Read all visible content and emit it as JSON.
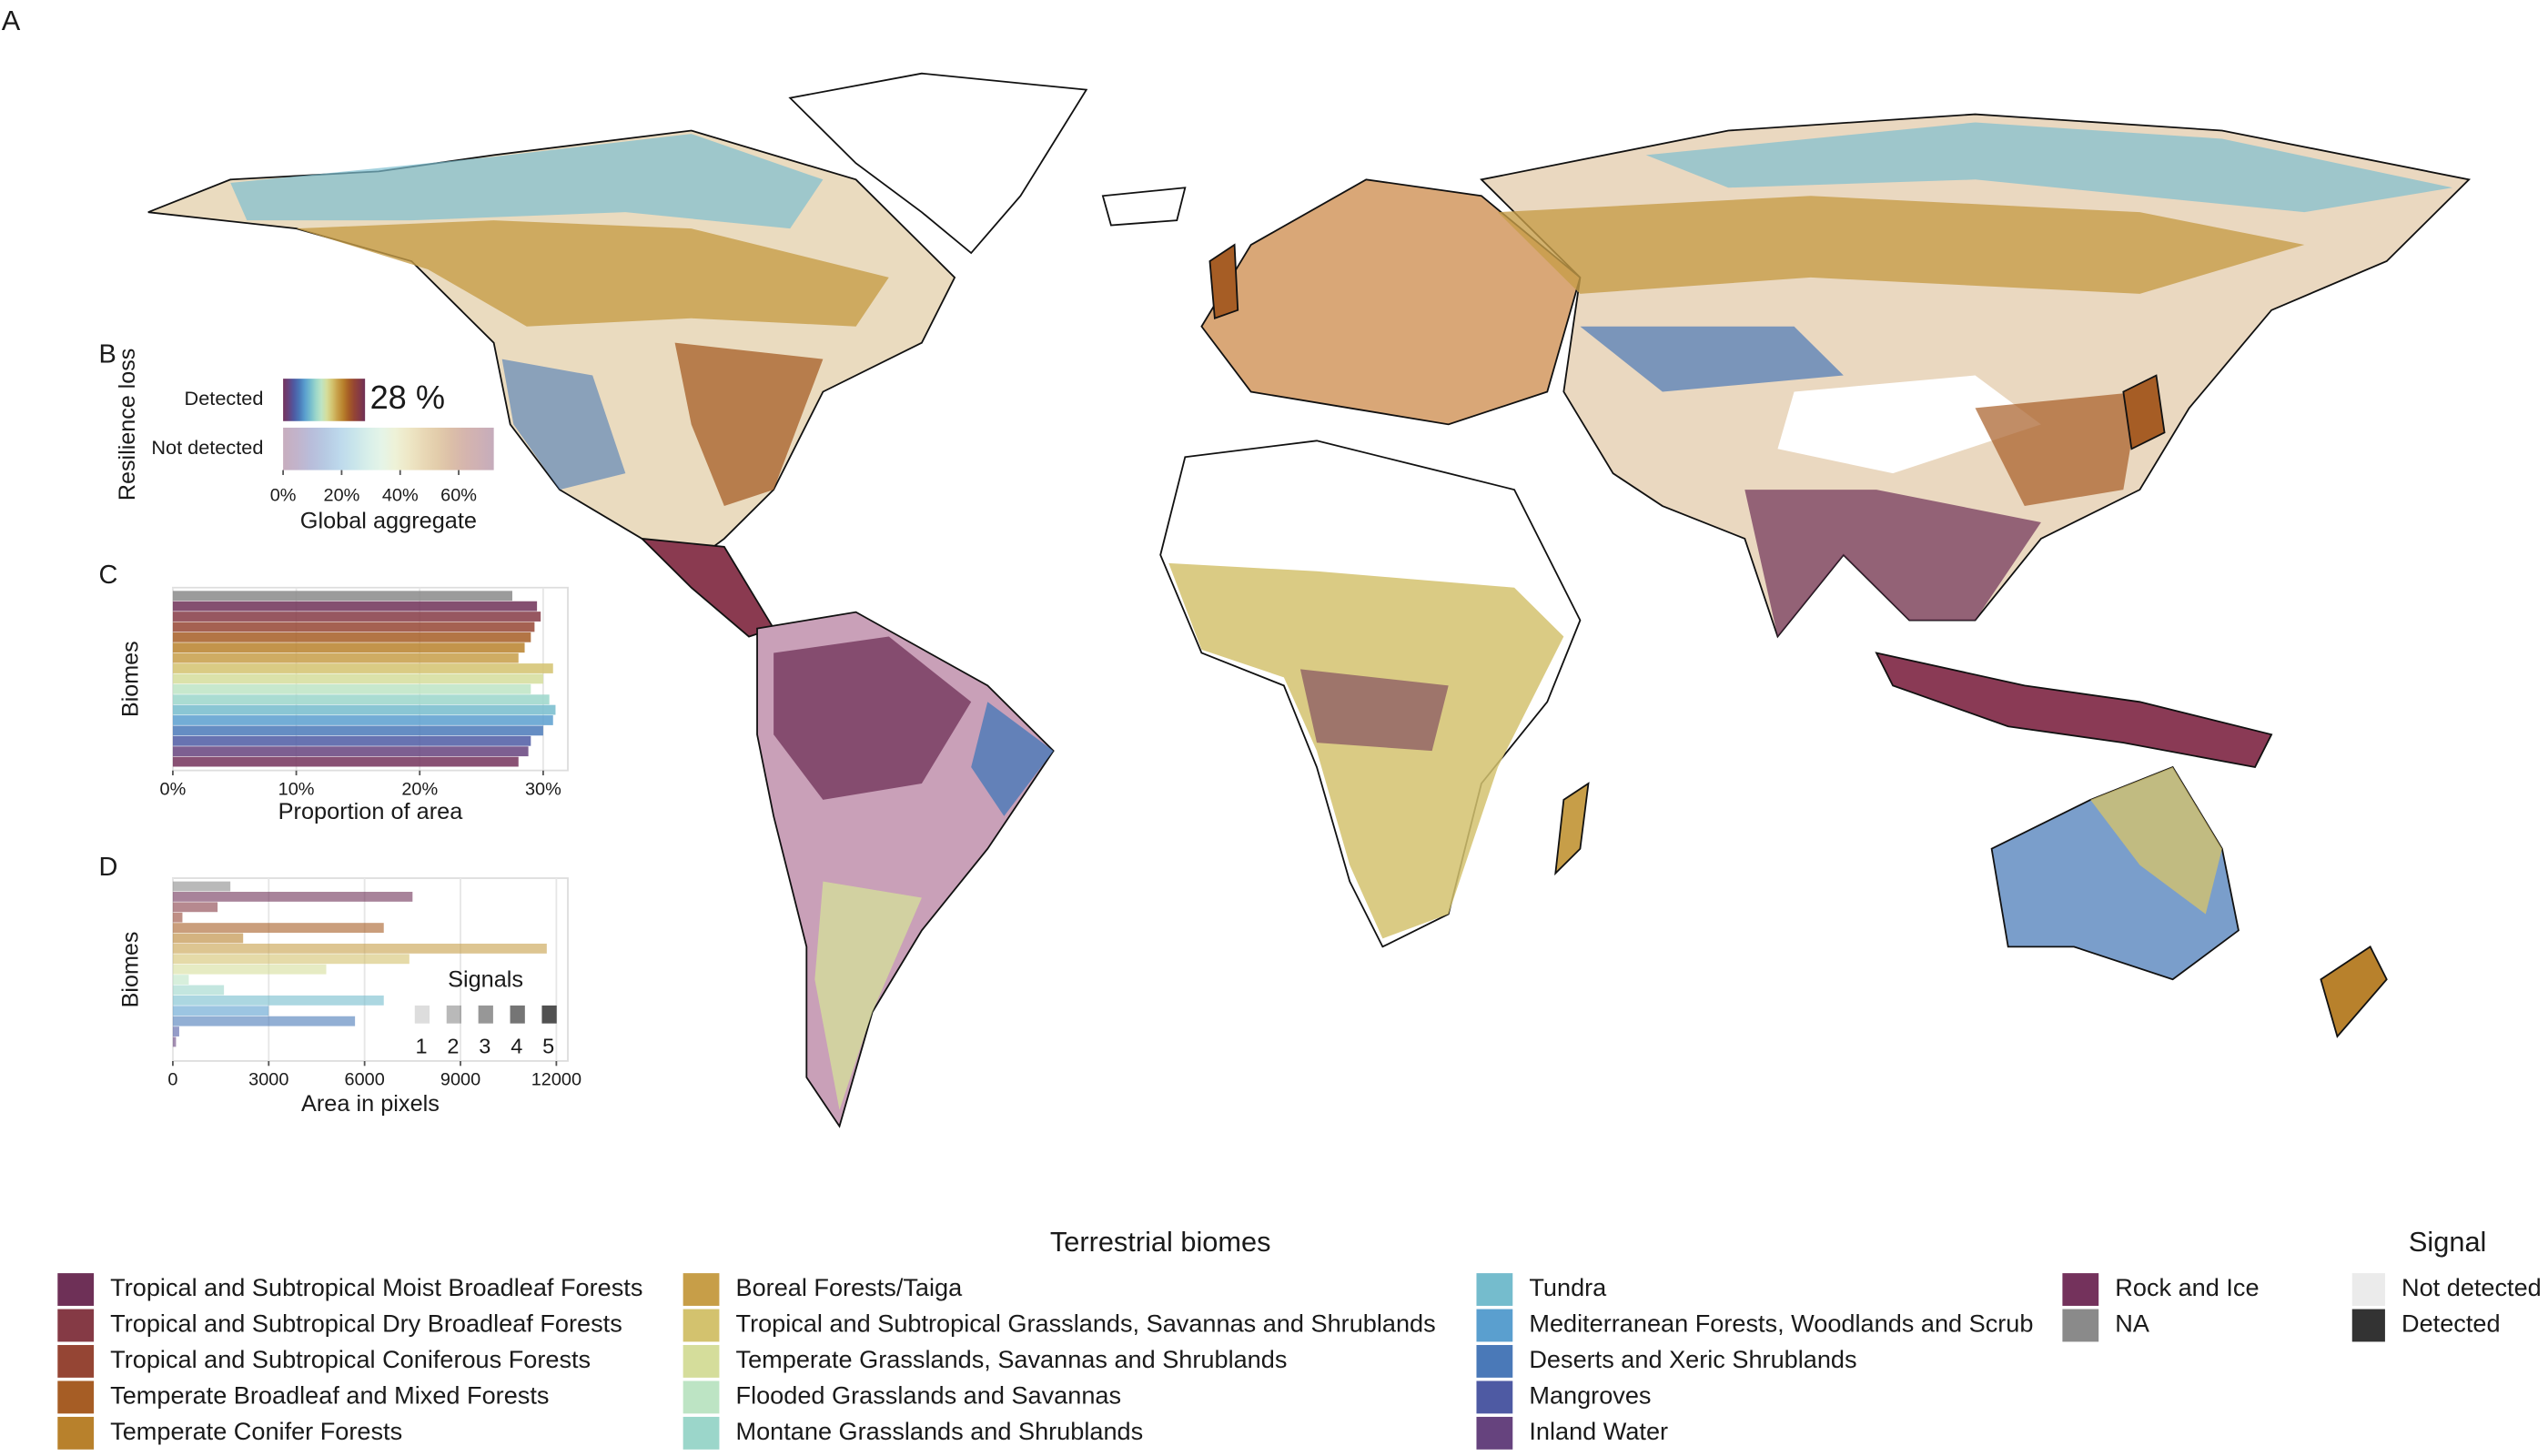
{
  "panel_label": "A",
  "legend": {
    "title": "Terrestrial biomes",
    "entries": [
      {
        "name": "Tropical and Subtropical Moist Broadleaf Forests",
        "color": "#6e3057"
      },
      {
        "name": "Tropical and Subtropical Dry Broadleaf Forests",
        "color": "#853a45"
      },
      {
        "name": "Tropical and Subtropical Coniferous Forests",
        "color": "#954534"
      },
      {
        "name": "Temperate Broadleaf and Mixed Forests",
        "color": "#a65d25"
      },
      {
        "name": "Temperate Conifer Forests",
        "color": "#b8812c"
      },
      {
        "name": "Boreal Forests/Taiga",
        "color": "#c79e48"
      },
      {
        "name": "Tropical and Subtropical Grasslands, Savannas and Shrublands",
        "color": "#d3c26e"
      },
      {
        "name": "Temperate Grasslands, Savannas and Shrublands",
        "color": "#d5dd9b"
      },
      {
        "name": "Flooded Grasslands and Savannas",
        "color": "#bde4c4"
      },
      {
        "name": "Montane Grasslands and Shrublands",
        "color": "#9bd6ca"
      },
      {
        "name": "Tundra",
        "color": "#75bccd"
      },
      {
        "name": "Mediterranean Forests, Woodlands and Scrub",
        "color": "#5a9fcf"
      },
      {
        "name": "Deserts and Xeric Shrublands",
        "color": "#4a79b8"
      },
      {
        "name": "Mangroves",
        "color": "#4e5aa3"
      },
      {
        "name": "Inland Water",
        "color": "#66437e"
      },
      {
        "name": "Rock and Ice",
        "color": "#74325c"
      },
      {
        "name": "NA",
        "color": "#8a8a8a"
      }
    ]
  },
  "signal_legend": {
    "title": "Signal",
    "entries": [
      {
        "name": "Not detected",
        "color": "#ebebeb"
      },
      {
        "name": "Detected",
        "color": "#333333"
      }
    ]
  },
  "chart_data": [
    {
      "type": "hbar-stack",
      "panel_label": "B",
      "ylabel": "Resilience loss",
      "xlabel": "Global aggregate",
      "categories": [
        "Detected",
        "Not detected"
      ],
      "values": [
        28,
        72
      ],
      "value_labels": [
        "28 %",
        null
      ],
      "xlim": [
        0,
        72
      ],
      "xticks": [
        {
          "value": 0,
          "label": "0%"
        },
        {
          "value": 20,
          "label": "20%"
        },
        {
          "value": 40,
          "label": "40%"
        },
        {
          "value": 60,
          "label": "60%"
        }
      ]
    },
    {
      "type": "hbar",
      "panel_label": "C",
      "ylabel": "Biomes",
      "xlabel": "Proportion of area",
      "values": [
        27.5,
        29.5,
        29.8,
        29.3,
        29,
        28.5,
        28,
        30.8,
        30,
        29,
        30.5,
        31,
        30.8,
        30,
        29,
        28.8,
        28
      ],
      "xlim": [
        0,
        32
      ],
      "xticks": [
        {
          "value": 0,
          "label": "0%"
        },
        {
          "value": 10,
          "label": "10%"
        },
        {
          "value": 20,
          "label": "20%"
        },
        {
          "value": 30,
          "label": "30%"
        }
      ],
      "grid": true
    },
    {
      "type": "hbar",
      "panel_label": "D",
      "ylabel": "Biomes",
      "xlabel": "Area in pixels",
      "values": [
        1800,
        7500,
        1400,
        300,
        6600,
        2200,
        11700,
        7400,
        4800,
        500,
        1600,
        6600,
        3000,
        5700,
        200,
        100,
        0
      ],
      "xlim": [
        0,
        12360
      ],
      "xticks": [
        0,
        3000,
        6000,
        9000,
        12000
      ],
      "grid": true,
      "signal_title": "Signals",
      "signal_levels": [
        1,
        2,
        3,
        4,
        5
      ]
    }
  ]
}
